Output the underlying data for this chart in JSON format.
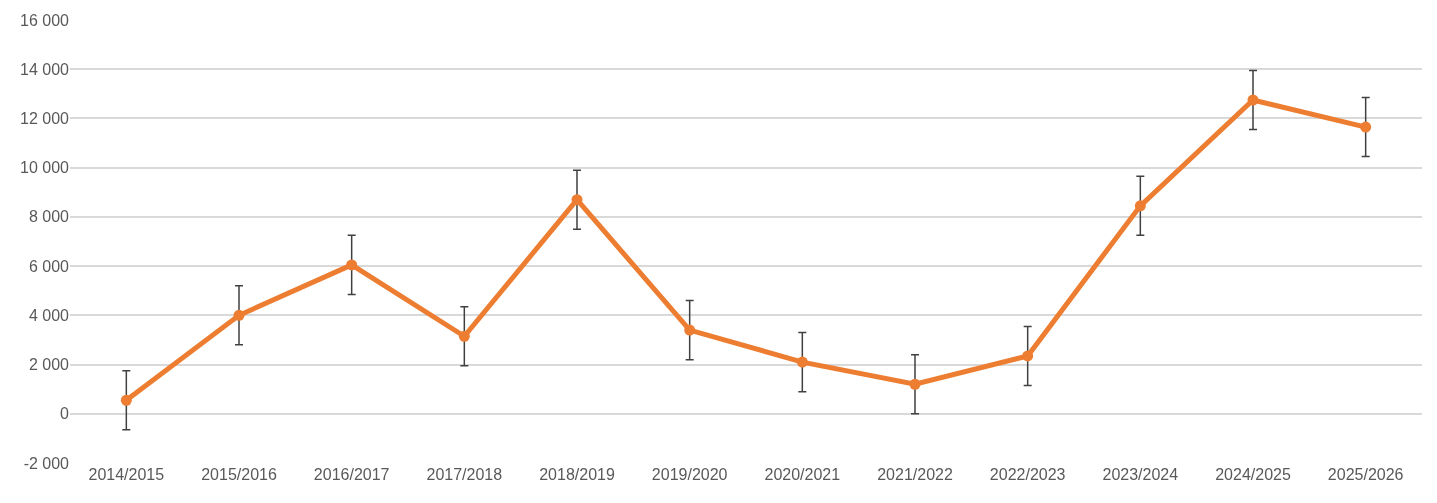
{
  "chart_data": {
    "type": "line",
    "categories": [
      "2014/2015",
      "2015/2016",
      "2016/2017",
      "2017/2018",
      "2018/2019",
      "2019/2020",
      "2020/2021",
      "2021/2022",
      "2022/2023",
      "2023/2024",
      "2024/2025",
      "2025/2026"
    ],
    "series": [
      {
        "color": "#ed7d31",
        "values": [
          550,
          4000,
          6050,
          3150,
          8700,
          3400,
          2100,
          1200,
          2350,
          8450,
          12750,
          11650
        ],
        "errors": [
          1200,
          1200,
          1200,
          1200,
          1200,
          1200,
          1200,
          1200,
          1200,
          1200,
          1200,
          1200
        ]
      }
    ],
    "ylim": [
      -2000,
      16000
    ],
    "yticks": [
      {
        "value": -2000,
        "label": "-2 000"
      },
      {
        "value": 0,
        "label": "0"
      },
      {
        "value": 2000,
        "label": "2 000"
      },
      {
        "value": 4000,
        "label": "4 000"
      },
      {
        "value": 6000,
        "label": "6 000"
      },
      {
        "value": 8000,
        "label": "8 000"
      },
      {
        "value": 10000,
        "label": "10 000"
      },
      {
        "value": 12000,
        "label": "12 000"
      },
      {
        "value": 14000,
        "label": "14 000"
      },
      {
        "value": 16000,
        "label": "16 000"
      }
    ],
    "grid": "y",
    "legend": false,
    "marker": "circle",
    "line_style": "solid"
  }
}
